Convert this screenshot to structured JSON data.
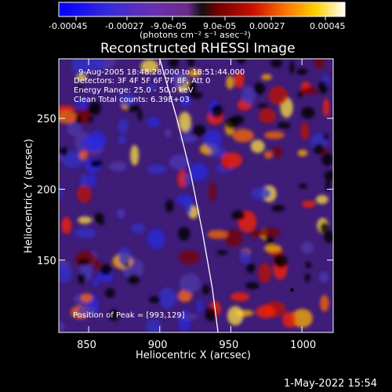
{
  "chart_data": {
    "type": "heatmap",
    "title": "Reconstructed RHESSI Image",
    "xlabel": "Heliocentric X (arcsec)",
    "ylabel": "Heliocentric Y (arcsec)",
    "xlim": [
      829,
      1022
    ],
    "ylim": [
      99,
      292
    ],
    "x_ticks": [
      850,
      900,
      950,
      1000
    ],
    "y_ticks": [
      150,
      200,
      250
    ],
    "annotations": [
      "9-Aug-2005 18:48:28.000 to 18:51:44.000",
      "Detectors: 3F 4F 5F 6F 7F 8F, Att 0",
      "Energy Range: 25.0 - 50.0 keV",
      "Clean     Total counts: 6.39E+03"
    ],
    "peak_label": "Position of Peak = [993,129]",
    "colorbar": {
      "tick_labels": [
        "-0.00045",
        "-0.00027",
        "-9.0e-05",
        "9.0e-05",
        "0.00027",
        "0.00045"
      ],
      "unit_label": "(photons cm⁻² s⁻¹ asec⁻²)",
      "range": [
        -0.00045,
        0.00045
      ]
    },
    "peak": [
      993,
      129
    ],
    "limb_curve": [
      [
        900,
        292
      ],
      [
        912,
        250
      ],
      [
        922,
        210
      ],
      [
        930,
        170
      ],
      [
        937,
        130
      ],
      [
        941,
        99
      ]
    ],
    "grid": false
  },
  "timestamp": "1-May-2022 15:54"
}
